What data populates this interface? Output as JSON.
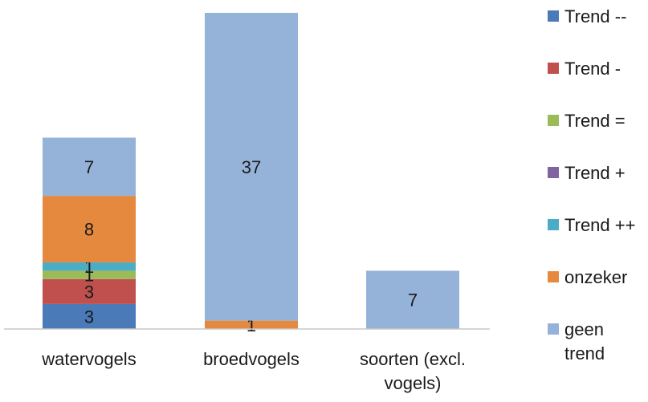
{
  "chart_data": {
    "type": "bar",
    "stacked": true,
    "title": "",
    "xlabel": "",
    "ylabel": "",
    "grid": false,
    "legend_position": "right",
    "categories": [
      [
        "watervogels"
      ],
      [
        "broedvogels"
      ],
      [
        "soorten (excl.",
        "vogels)"
      ]
    ],
    "series": [
      {
        "name": "Trend --",
        "color": "#4a7ab8",
        "values": [
          3,
          0,
          0
        ]
      },
      {
        "name": "Trend -",
        "color": "#c0504d",
        "values": [
          3,
          0,
          0
        ]
      },
      {
        "name": "Trend =",
        "color": "#9bbb59",
        "values": [
          1,
          0,
          0
        ]
      },
      {
        "name": "Trend +",
        "color": "#8064a2",
        "values": [
          0,
          0,
          0
        ]
      },
      {
        "name": "Trend ++",
        "color": "#4bacc6",
        "values": [
          1,
          0,
          0
        ]
      },
      {
        "name": "onzeker",
        "color": "#e5893f",
        "values": [
          8,
          1,
          0
        ]
      },
      {
        "name": "geen trend",
        "color": "#95b2d8",
        "values": [
          7,
          37,
          7
        ]
      }
    ],
    "legend_labels": [
      [
        "Trend --"
      ],
      [
        "Trend -"
      ],
      [
        "Trend ="
      ],
      [
        "Trend +"
      ],
      [
        "Trend ++"
      ],
      [
        "onzeker"
      ],
      [
        "geen",
        "trend"
      ]
    ]
  }
}
